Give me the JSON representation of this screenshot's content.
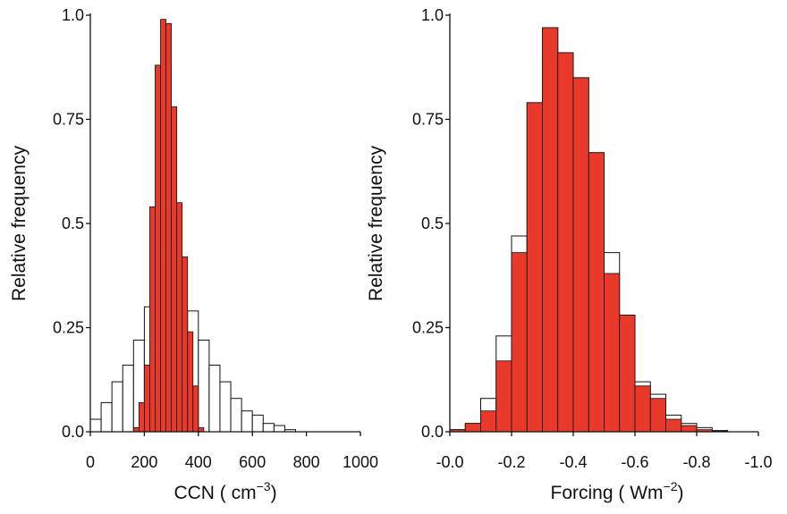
{
  "chart_data": [
    {
      "type": "bar",
      "xlabel": "CCN ( cm",
      "xlabel_sup": "−3",
      "xlabel_close": ")",
      "ylabel": "Relative frequency",
      "xlim": [
        0,
        1000
      ],
      "ylim": [
        0,
        1.0
      ],
      "x_ticks": [
        0,
        200,
        400,
        600,
        800,
        1000
      ],
      "x_tick_labels": [
        "0",
        "200",
        "400",
        "600",
        "800",
        "1000"
      ],
      "y_ticks": [
        0,
        0.25,
        0.5,
        0.75,
        1.0
      ],
      "y_tick_labels": [
        "0.0",
        "0.25",
        "0.5",
        "0.75",
        "1.0"
      ],
      "series": [
        {
          "style": "open",
          "color": "#ffffff",
          "bin_width": 40,
          "x": [
            20,
            60,
            100,
            140,
            180,
            220,
            260,
            300,
            340,
            380,
            420,
            460,
            500,
            540,
            580,
            620,
            660,
            700,
            740
          ],
          "values": [
            0.03,
            0.07,
            0.12,
            0.16,
            0.22,
            0.3,
            0.3,
            0.3,
            0.29,
            0.29,
            0.22,
            0.16,
            0.12,
            0.08,
            0.05,
            0.04,
            0.02,
            0.015,
            0.005
          ]
        },
        {
          "style": "filled",
          "color": "#e8392a",
          "bin_width": 20,
          "x": [
            170,
            190,
            210,
            230,
            250,
            270,
            290,
            310,
            330,
            350,
            370,
            390,
            410
          ],
          "values": [
            0.01,
            0.07,
            0.16,
            0.54,
            0.88,
            0.99,
            0.98,
            0.78,
            0.55,
            0.42,
            0.24,
            0.11,
            0.01
          ]
        }
      ]
    },
    {
      "type": "bar",
      "xlabel": "Forcing ( Wm",
      "xlabel_sup": "−2",
      "xlabel_close": ")",
      "ylabel": "Relative frequency",
      "xlim": [
        0.0,
        -1.0
      ],
      "ylim": [
        0,
        1.0
      ],
      "x_ticks": [
        0.0,
        -0.2,
        -0.4,
        -0.6,
        -0.8,
        -1.0
      ],
      "x_tick_labels": [
        "-0.0",
        "-0.2",
        "-0.4",
        "-0.6",
        "-0.8",
        "-1.0"
      ],
      "y_ticks": [
        0,
        0.25,
        0.5,
        0.75,
        1.0
      ],
      "y_tick_labels": [
        "0.0",
        "0.25",
        "0.5",
        "0.75",
        "1.0"
      ],
      "series": [
        {
          "style": "open",
          "color": "#ffffff",
          "bin_width": 0.05,
          "x": [
            -0.025,
            -0.075,
            -0.125,
            -0.175,
            -0.225,
            -0.275,
            -0.325,
            -0.375,
            -0.425,
            -0.475,
            -0.525,
            -0.575,
            -0.625,
            -0.675,
            -0.725,
            -0.775,
            -0.825,
            -0.875
          ],
          "values": [
            0.005,
            0.02,
            0.08,
            0.23,
            0.47,
            0.79,
            0.97,
            0.91,
            0.85,
            0.67,
            0.43,
            0.28,
            0.12,
            0.09,
            0.04,
            0.02,
            0.01,
            0.003
          ]
        },
        {
          "style": "filled",
          "color": "#e8392a",
          "bin_width": 0.05,
          "x": [
            -0.025,
            -0.075,
            -0.125,
            -0.175,
            -0.225,
            -0.275,
            -0.325,
            -0.375,
            -0.425,
            -0.475,
            -0.525,
            -0.575,
            -0.625,
            -0.675,
            -0.725,
            -0.775,
            -0.825,
            -0.875
          ],
          "values": [
            0.005,
            0.02,
            0.05,
            0.17,
            0.43,
            0.79,
            0.97,
            0.91,
            0.85,
            0.67,
            0.38,
            0.28,
            0.11,
            0.08,
            0.03,
            0.015,
            0.005,
            0.002
          ]
        }
      ]
    }
  ]
}
